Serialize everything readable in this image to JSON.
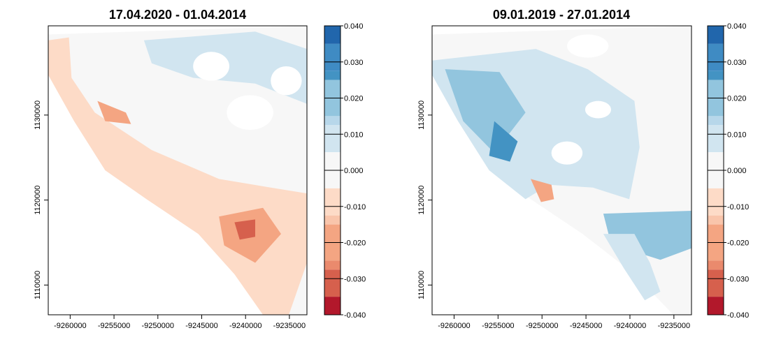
{
  "chart_data": [
    {
      "type": "heatmap",
      "title": "17.04.2020 - 01.04.2014",
      "xlabel": "",
      "ylabel": "",
      "x_ticks": [
        -9260000,
        -9255000,
        -9250000,
        -9245000,
        -9240000,
        -9235000
      ],
      "x_tick_labels": [
        "-9260000",
        "-9255000",
        "-9250000",
        "-9245000",
        "-9240000",
        "-9235000"
      ],
      "y_ticks": [
        1110000,
        1120000,
        1130000
      ],
      "y_tick_labels": [
        "1110000",
        "1120000",
        "1130000"
      ],
      "xlim": [
        -9262500,
        -9233000
      ],
      "ylim": [
        1106500,
        1140500
      ],
      "value_range": [
        -0.04,
        0.04
      ],
      "dominant_sign": "negative",
      "legend_placement": "right",
      "grid": false
    },
    {
      "type": "heatmap",
      "title": "09.01.2019 - 27.01.2014",
      "xlabel": "",
      "ylabel": "",
      "x_ticks": [
        -9260000,
        -9255000,
        -9250000,
        -9245000,
        -9240000,
        -9235000
      ],
      "x_tick_labels": [
        "-9260000",
        "-9255000",
        "-9250000",
        "-9245000",
        "-9240000",
        "-9235000"
      ],
      "y_ticks": [
        1110000,
        1120000,
        1130000
      ],
      "y_tick_labels": [
        "1110000",
        "1120000",
        "1130000"
      ],
      "xlim": [
        -9262500,
        -9233000
      ],
      "ylim": [
        1106500,
        1140500
      ],
      "value_range": [
        -0.04,
        0.04
      ],
      "dominant_sign": "positive",
      "legend_placement": "right",
      "grid": false
    }
  ],
  "legend": {
    "ticks": [
      0.04,
      0.03,
      0.02,
      0.01,
      0.0,
      -0.01,
      -0.02,
      -0.03,
      -0.04
    ],
    "tick_labels": [
      "0.040",
      "0.030",
      "0.020",
      "0.010",
      "0.000",
      "-0.010",
      "-0.020",
      "-0.030",
      "-0.040"
    ],
    "bins": [
      {
        "from": 0.035,
        "to": 0.04,
        "color": "#2166ac"
      },
      {
        "from": 0.0275,
        "to": 0.035,
        "color": "#3f8bc3"
      },
      {
        "from": 0.025,
        "to": 0.0275,
        "color": "#4393c3"
      },
      {
        "from": 0.015,
        "to": 0.025,
        "color": "#92c5de"
      },
      {
        "from": 0.0125,
        "to": 0.015,
        "color": "#b7d7ea"
      },
      {
        "from": 0.005,
        "to": 0.0125,
        "color": "#d1e5f0"
      },
      {
        "from": -0.005,
        "to": 0.005,
        "color": "#f7f7f7"
      },
      {
        "from": -0.0125,
        "to": -0.005,
        "color": "#fddbc7"
      },
      {
        "from": -0.015,
        "to": -0.0125,
        "color": "#f9c5ab"
      },
      {
        "from": -0.025,
        "to": -0.015,
        "color": "#f4a582"
      },
      {
        "from": -0.0275,
        "to": -0.025,
        "color": "#ea8a6d"
      },
      {
        "from": -0.035,
        "to": -0.0275,
        "color": "#d6604d"
      },
      {
        "from": -0.04,
        "to": -0.035,
        "color": "#b2182b"
      }
    ]
  },
  "colors": {
    "neutral": "#f7f7f7",
    "nodata": "#ffffff",
    "neg_light": "#fddbc7",
    "neg_mid": "#f4a582",
    "neg_dark": "#d6604d",
    "pos_light": "#d1e5f0",
    "pos_mid": "#92c5de",
    "pos_dark": "#4393c3"
  }
}
